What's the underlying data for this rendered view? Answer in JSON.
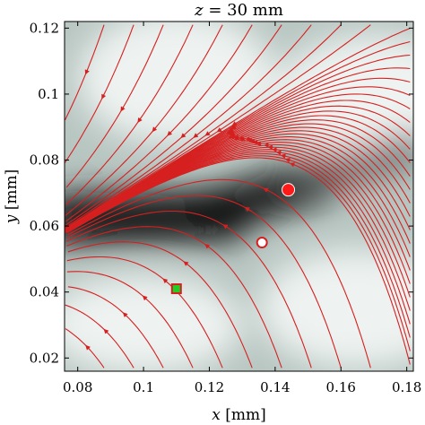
{
  "chart_data": {
    "type": "streamplot",
    "title": {
      "var": "z",
      "eq": " = 30 mm"
    },
    "xlabel": {
      "var": "x",
      "unit": " [mm]"
    },
    "ylabel": {
      "var": "y",
      "unit": " [mm]"
    },
    "xlim": [
      0.076,
      0.182
    ],
    "ylim": [
      0.016,
      0.122
    ],
    "xticks": [
      0.08,
      0.1,
      0.12,
      0.14,
      0.16,
      0.18
    ],
    "xtick_labels": [
      "0.08",
      "0.1",
      "0.12",
      "0.14",
      "0.16",
      "0.18"
    ],
    "yticks": [
      0.02,
      0.04,
      0.06,
      0.08,
      0.1,
      0.12
    ],
    "ytick_labels": [
      "0.02",
      "0.04",
      "0.06",
      "0.08",
      "0.1",
      "0.12"
    ],
    "background": "intensity map: dark band near y = 0.06, light elsewhere",
    "stream_color": "#d62020",
    "markers": [
      {
        "label": "red filled circle",
        "x": 0.144,
        "y": 0.071,
        "fill": "#ff1a1a",
        "stroke": "#ffffff",
        "shape": "circle"
      },
      {
        "label": "white circle",
        "x": 0.136,
        "y": 0.055,
        "fill": "#ffffff",
        "stroke": "#d62020",
        "shape": "circle"
      },
      {
        "label": "green square",
        "x": 0.11,
        "y": 0.041,
        "fill": "#22cc22",
        "stroke": "#d62020",
        "shape": "square"
      }
    ]
  }
}
